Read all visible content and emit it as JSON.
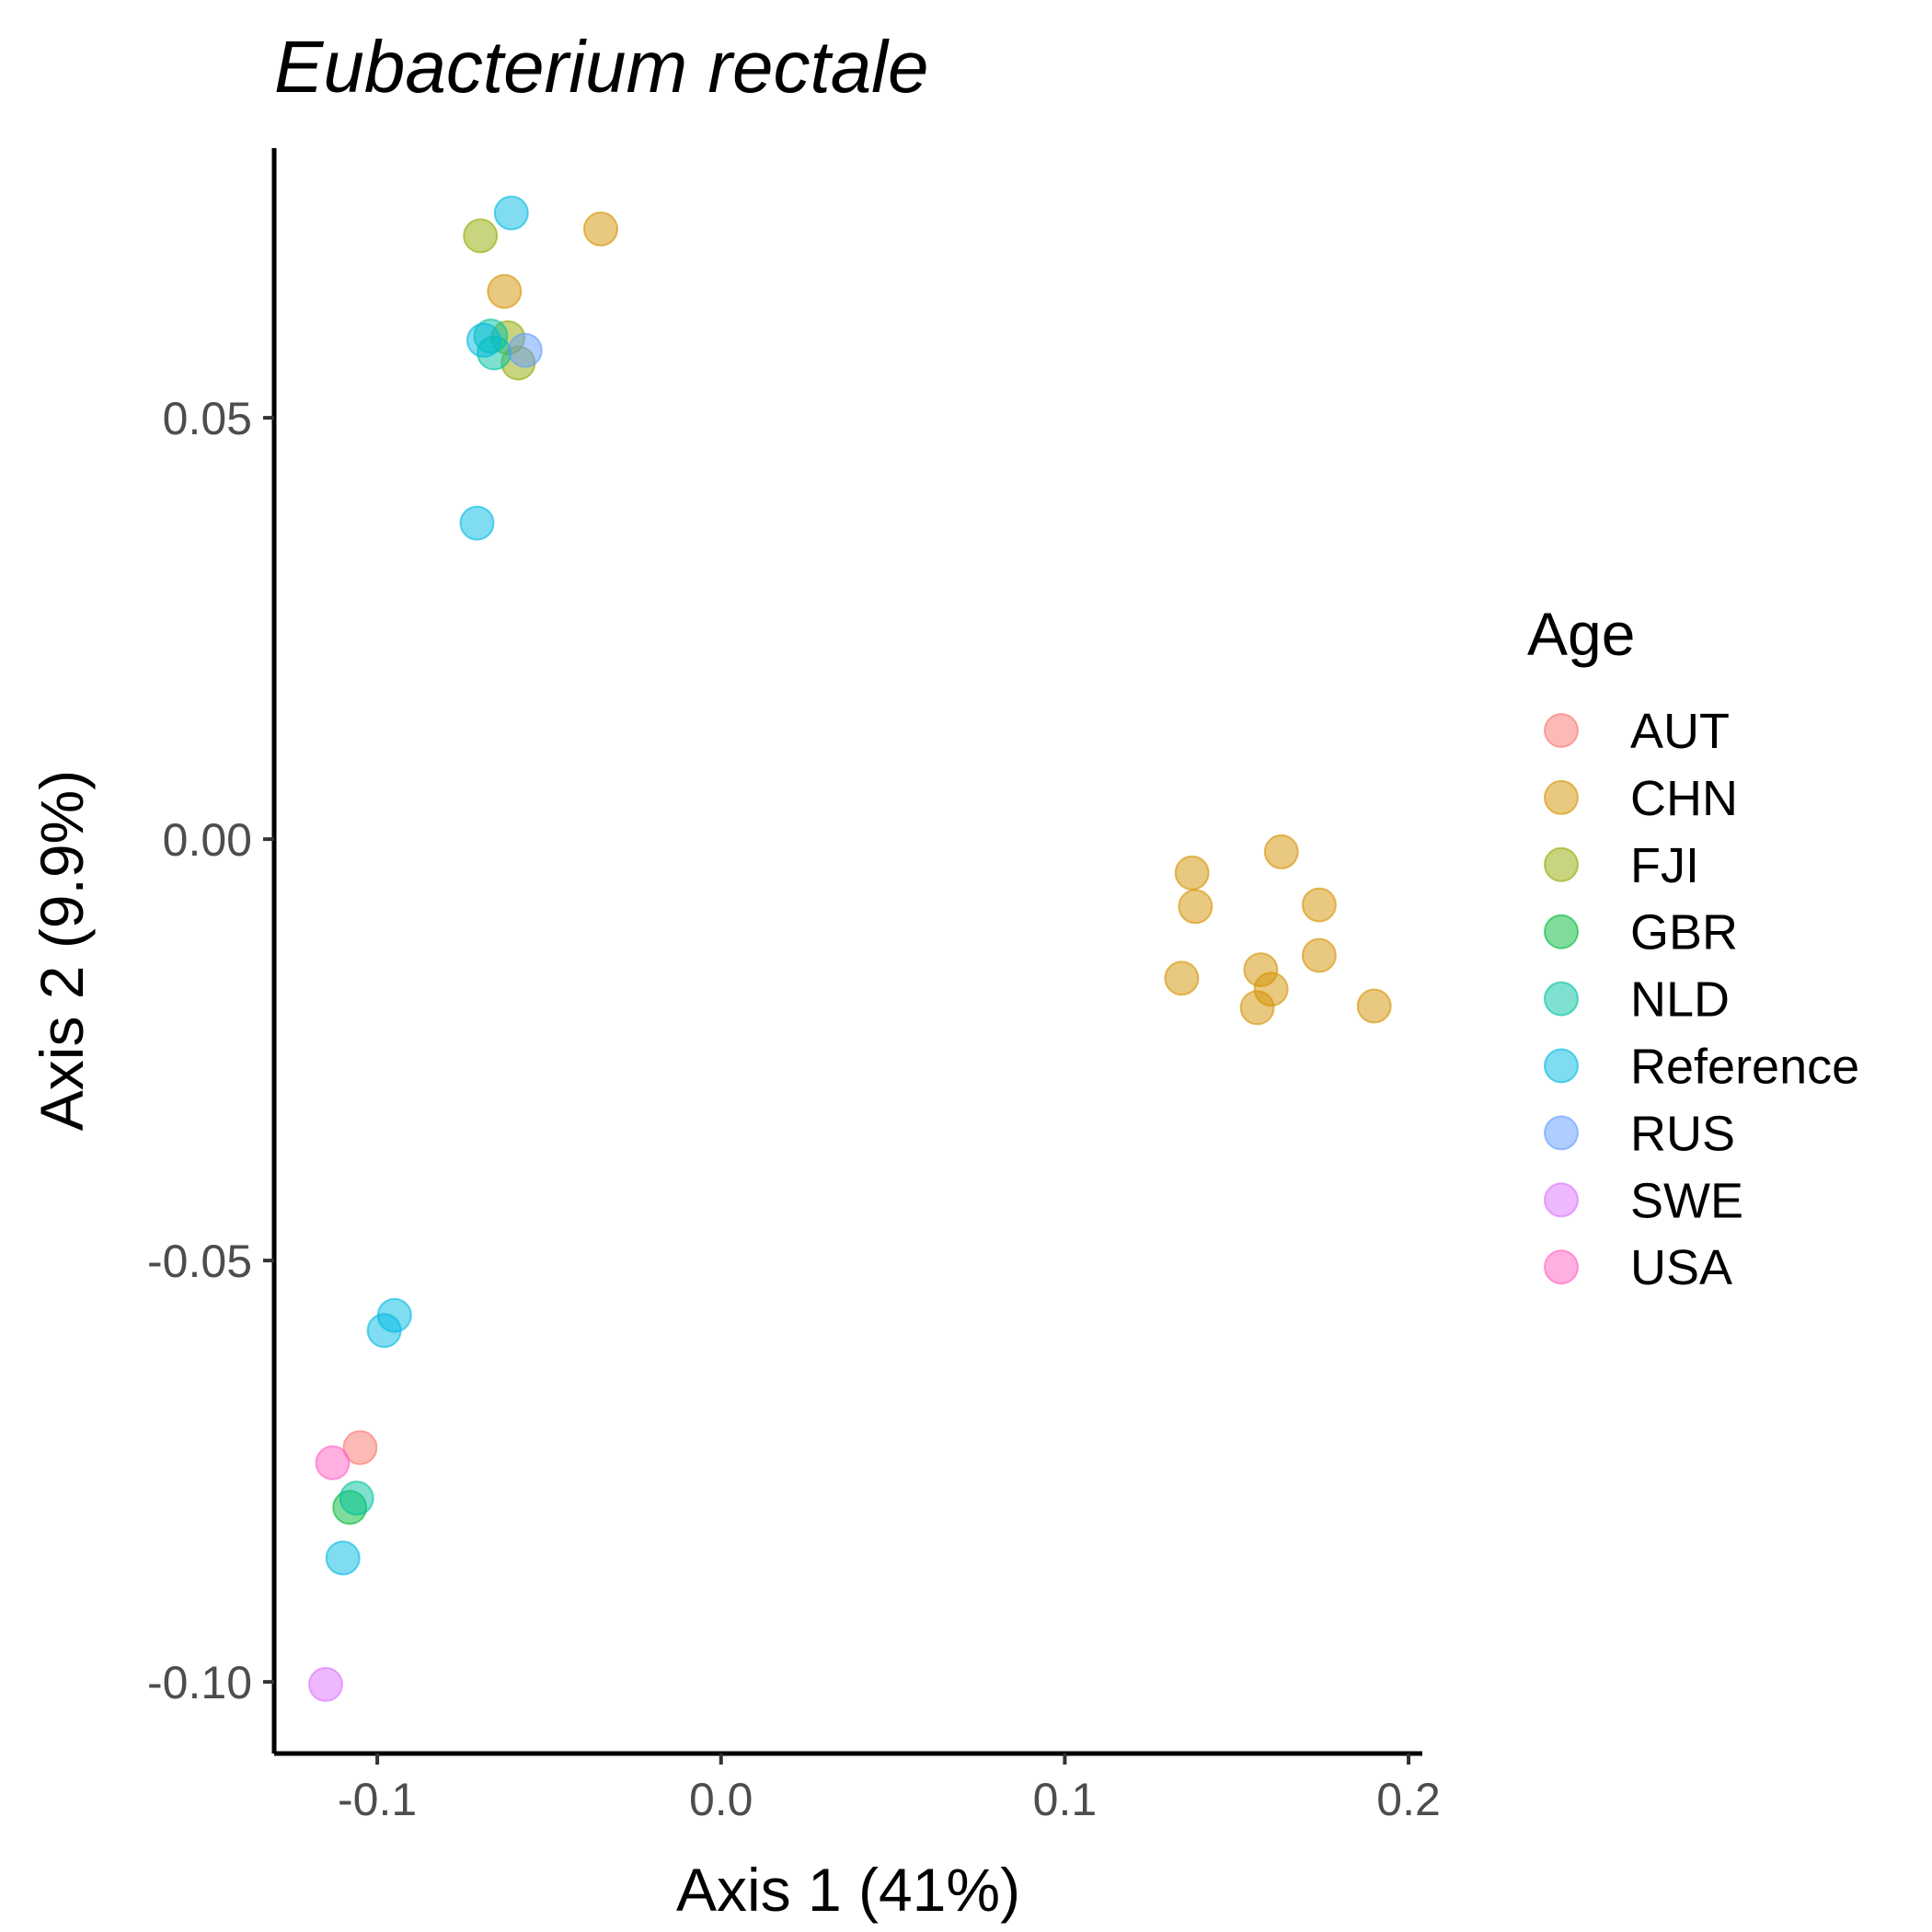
{
  "chart_data": {
    "type": "scatter",
    "title": "Eubacterium rectale",
    "xlabel": "Axis 1 (41%)",
    "ylabel": "Axis 2 (9.9%)",
    "xlim": [
      -0.13,
      0.204
    ],
    "ylim": [
      -0.1085,
      0.082
    ],
    "x_ticks": [
      -0.1,
      0.0,
      0.1,
      0.2
    ],
    "x_tick_labels": [
      "-0.1",
      "0.0",
      "0.1",
      "0.2"
    ],
    "y_ticks": [
      -0.1,
      -0.05,
      0.0,
      0.05
    ],
    "y_tick_labels": [
      "-0.10",
      "-0.05",
      "0.00",
      "0.05"
    ],
    "grid": false,
    "legend": {
      "title": "Age",
      "position": "right"
    },
    "series": [
      {
        "name": "AUT",
        "color": "#F8766D",
        "points": [
          [
            -0.105,
            -0.0722
          ]
        ]
      },
      {
        "name": "CHN",
        "color": "#D39200",
        "points": [
          [
            -0.035,
            0.0724
          ],
          [
            -0.063,
            0.065
          ],
          [
            0.137,
            -0.004
          ],
          [
            0.138,
            -0.008
          ],
          [
            0.163,
            -0.0015
          ],
          [
            0.174,
            -0.0078
          ],
          [
            0.174,
            -0.0138
          ],
          [
            0.157,
            -0.0155
          ],
          [
            0.16,
            -0.0178
          ],
          [
            0.156,
            -0.02
          ],
          [
            0.134,
            -0.0165
          ],
          [
            0.19,
            -0.0198
          ]
        ]
      },
      {
        "name": "FJI",
        "color": "#93AA00",
        "points": [
          [
            -0.07,
            0.0716
          ],
          [
            -0.062,
            0.0595
          ],
          [
            -0.059,
            0.0565
          ]
        ]
      },
      {
        "name": "GBR",
        "color": "#00BA38",
        "points": [
          [
            -0.108,
            -0.0793
          ]
        ]
      },
      {
        "name": "NLD",
        "color": "#00C19F",
        "points": [
          [
            -0.067,
            0.0597
          ],
          [
            -0.066,
            0.0577
          ],
          [
            -0.106,
            -0.0782
          ]
        ]
      },
      {
        "name": "Reference",
        "color": "#00B9E3",
        "points": [
          [
            -0.061,
            0.0743
          ],
          [
            -0.069,
            0.0592
          ],
          [
            -0.071,
            0.0375
          ],
          [
            -0.095,
            -0.0565
          ],
          [
            -0.098,
            -0.0583
          ],
          [
            -0.11,
            -0.0853
          ]
        ]
      },
      {
        "name": "RUS",
        "color": "#619CFF",
        "points": [
          [
            -0.057,
            0.058
          ]
        ]
      },
      {
        "name": "SWE",
        "color": "#DB72FB",
        "points": [
          [
            -0.115,
            -0.1003
          ]
        ]
      },
      {
        "name": "USA",
        "color": "#FF61C3",
        "points": [
          [
            -0.113,
            -0.074
          ]
        ]
      }
    ]
  }
}
